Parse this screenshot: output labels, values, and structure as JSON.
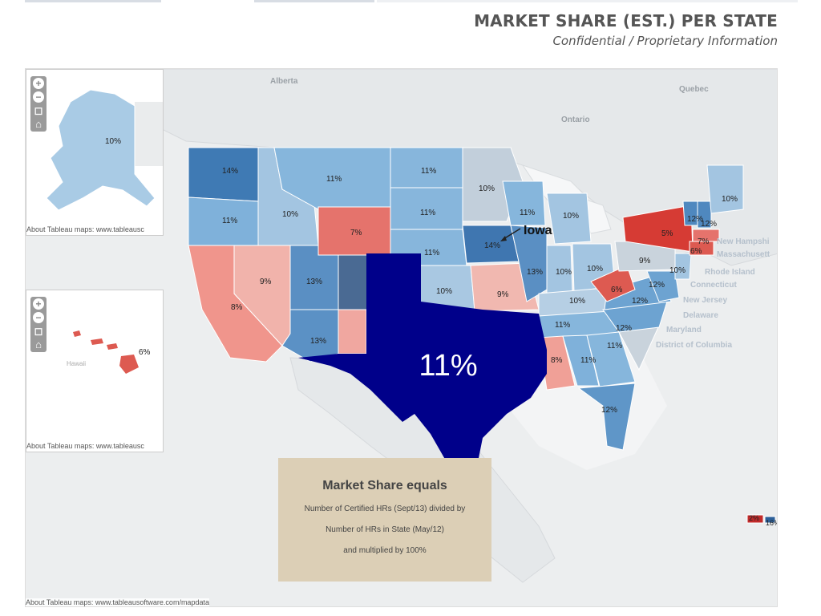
{
  "header": {
    "title": "MARKET SHARE (EST.) PER STATE",
    "subtitle": "Confidential / Proprietary Information"
  },
  "map_credit": "About Tableau maps: www.tableausoftware.com/mapdata",
  "inset_credit": "About Tableau maps: www.tableausc",
  "map_controls": [
    "zoom-in",
    "zoom-out",
    "select",
    "home"
  ],
  "insets": {
    "alaska": {
      "value": "10%"
    },
    "hawaii": {
      "label": "Hawaii",
      "value": "6%"
    }
  },
  "geo_labels": {
    "alberta": "Alberta",
    "ontario": "Ontario",
    "quebec": "Quebec",
    "new_hampshire": "New Hampshi",
    "massachusetts": "Massachusett",
    "rhode_island": "Rhode Island",
    "connecticut": "Connecticut",
    "new_jersey": "New Jersey",
    "delaware": "Delaware",
    "maryland": "Maryland",
    "dc": "District of Columbia"
  },
  "callout": {
    "label": "Iowa"
  },
  "highlight": {
    "state": "Texas",
    "value": "11%",
    "color": "#00008a"
  },
  "states": [
    {
      "name": "Washington",
      "value": "14%",
      "color": "#3f7ab4"
    },
    {
      "name": "Oregon",
      "value": "11%",
      "color": "#7fb1da"
    },
    {
      "name": "Idaho",
      "value": "10%",
      "color": "#a3c5e1"
    },
    {
      "name": "Montana",
      "value": "11%",
      "color": "#86b6dc"
    },
    {
      "name": "Wyoming",
      "value": "7%",
      "color": "#e5736c"
    },
    {
      "name": "California",
      "value": "8%",
      "color": "#f0958c"
    },
    {
      "name": "Nevada",
      "value": "9%",
      "color": "#f1b3ab"
    },
    {
      "name": "Utah",
      "value": "13%",
      "color": "#5a8fc3"
    },
    {
      "name": "Arizona",
      "value": "13%",
      "color": "#5b91c5"
    },
    {
      "name": "North Dakota",
      "value": "11%",
      "color": "#87b6dc"
    },
    {
      "name": "South Dakota",
      "value": "11%",
      "color": "#87b6dc"
    },
    {
      "name": "Nebraska",
      "value": "11%",
      "color": "#87b6dc"
    },
    {
      "name": "Kansas",
      "value": "10%",
      "color": "#a9c8e2"
    },
    {
      "name": "Minnesota",
      "value": "10%",
      "color": "#c2cfdb"
    },
    {
      "name": "Iowa",
      "value": "14%",
      "color": "#3f76b0"
    },
    {
      "name": "Missouri",
      "value": "9%",
      "color": "#f1b8b0"
    },
    {
      "name": "Wisconsin",
      "value": "11%",
      "color": "#86b6dc"
    },
    {
      "name": "Michigan",
      "value": "10%",
      "color": "#a3c5e1"
    },
    {
      "name": "Illinois",
      "value": "13%",
      "color": "#5a8fc3"
    },
    {
      "name": "Indiana",
      "value": "10%",
      "color": "#a3c5e1"
    },
    {
      "name": "Ohio",
      "value": "10%",
      "color": "#a3c5e1"
    },
    {
      "name": "Kentucky",
      "value": "10%",
      "color": "#b6cfe4"
    },
    {
      "name": "Tennessee",
      "value": "11%",
      "color": "#86b6dc"
    },
    {
      "name": "Mississippi",
      "value": "8%",
      "color": "#f0a097"
    },
    {
      "name": "Alabama",
      "value": "11%",
      "color": "#7fb1da"
    },
    {
      "name": "Georgia",
      "value": "11%",
      "color": "#86b6dc"
    },
    {
      "name": "Florida",
      "value": "12%",
      "color": "#5f96c8"
    },
    {
      "name": "South Carolina",
      "value": "9%",
      "color": "#c9d3dc"
    },
    {
      "name": "North Carolina",
      "value": "12%",
      "color": "#6da3d1"
    },
    {
      "name": "Virginia",
      "value": "12%",
      "color": "#6da3d1"
    },
    {
      "name": "West Virginia",
      "value": "6%",
      "color": "#dd5a51"
    },
    {
      "name": "Pennsylvania",
      "value": "9%",
      "color": "#c9d3dc"
    },
    {
      "name": "Maryland",
      "value": "12%",
      "color": "#6da3d1"
    },
    {
      "name": "New Jersey",
      "value": "10%",
      "color": "#a3c5e1"
    },
    {
      "name": "New York",
      "value": "5%",
      "color": "#d63b34"
    },
    {
      "name": "Vermont",
      "value": "12%",
      "color": "#4f88bf"
    },
    {
      "name": "New Hampshire",
      "value": "12%",
      "color": "#4f88bf"
    },
    {
      "name": "Maine",
      "value": "10%",
      "color": "#a3c5e1"
    },
    {
      "name": "Massachusetts",
      "value": "7%",
      "color": "#e5736c"
    },
    {
      "name": "Connecticut",
      "value": "6%",
      "color": "#dd5a51"
    },
    {
      "name": "Puerto Rico",
      "value": "2%",
      "color": "#c02a2a"
    },
    {
      "name": "Virgin Islands",
      "value": "16%",
      "color": "#2c5f98"
    }
  ],
  "infobox": {
    "heading": "Market Share equals",
    "line1": "Number of Certified HRs (Sept/13) divided by",
    "line2": "Number of HRs in State (May/12)",
    "line3": "and multiplied by 100%"
  }
}
